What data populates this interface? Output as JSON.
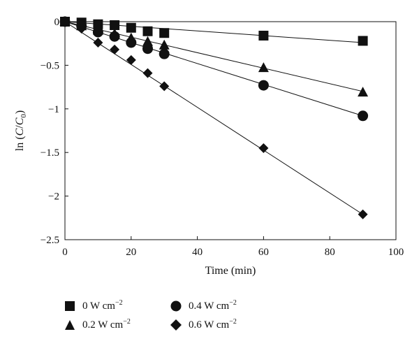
{
  "chart_data": {
    "type": "scatter",
    "title": "",
    "xlabel": "Time (min)",
    "ylabel": "ln (C/C0)",
    "xlim": [
      0,
      100
    ],
    "ylim": [
      -2.5,
      0
    ],
    "x_ticks": [
      "0",
      "20",
      "40",
      "60",
      "80",
      "100"
    ],
    "y_ticks": [
      "0",
      "−0.5",
      "−1",
      "−1.5",
      "−2",
      "−2.5"
    ],
    "grid": false,
    "legend_position": "bottom",
    "series": [
      {
        "name": "0 W cm−2",
        "marker": "square",
        "x": [
          0,
          5,
          10,
          15,
          20,
          25,
          30,
          60,
          90
        ],
        "y": [
          0,
          -0.01,
          -0.03,
          -0.04,
          -0.07,
          -0.11,
          -0.13,
          -0.16,
          -0.22
        ],
        "fit": [
          [
            0,
            0
          ],
          [
            90,
            -0.24
          ]
        ]
      },
      {
        "name": "0.2 W cm−2",
        "marker": "triangle",
        "x": [
          0,
          5,
          10,
          15,
          20,
          25,
          30,
          60,
          90
        ],
        "y": [
          0,
          -0.05,
          -0.1,
          -0.14,
          -0.19,
          -0.23,
          -0.27,
          -0.53,
          -0.81
        ],
        "fit": [
          [
            0,
            0
          ],
          [
            90,
            -0.8
          ]
        ]
      },
      {
        "name": "0.4 W cm−2",
        "marker": "circle",
        "x": [
          0,
          5,
          10,
          15,
          20,
          25,
          30,
          60,
          90
        ],
        "y": [
          0,
          -0.05,
          -0.12,
          -0.17,
          -0.24,
          -0.31,
          -0.37,
          -0.73,
          -1.08
        ],
        "fit": [
          [
            0,
            0
          ],
          [
            90,
            -1.08
          ]
        ]
      },
      {
        "name": "0.6 W cm−2",
        "marker": "diamond",
        "x": [
          0,
          5,
          10,
          15,
          20,
          25,
          30,
          60,
          90
        ],
        "y": [
          0,
          -0.08,
          -0.24,
          -0.32,
          -0.44,
          -0.59,
          -0.74,
          -1.45,
          -2.21
        ],
        "fit": [
          [
            0,
            0
          ],
          [
            90,
            -2.21
          ]
        ]
      }
    ]
  },
  "legend": [
    {
      "marker": "square",
      "value": "0",
      "unit": "W cm",
      "exp": "−2"
    },
    {
      "marker": "triangle",
      "value": "0.2",
      "unit": "W cm",
      "exp": "−2"
    },
    {
      "marker": "circle",
      "value": "0.4",
      "unit": "W cm",
      "exp": "−2"
    },
    {
      "marker": "diamond",
      "value": "0.6",
      "unit": "W cm",
      "exp": "−2"
    }
  ],
  "y_label_parts": {
    "pre": "ln (",
    "c": "C",
    "slash": "/",
    "c0": "C",
    "sub": "0",
    "post": ")"
  }
}
